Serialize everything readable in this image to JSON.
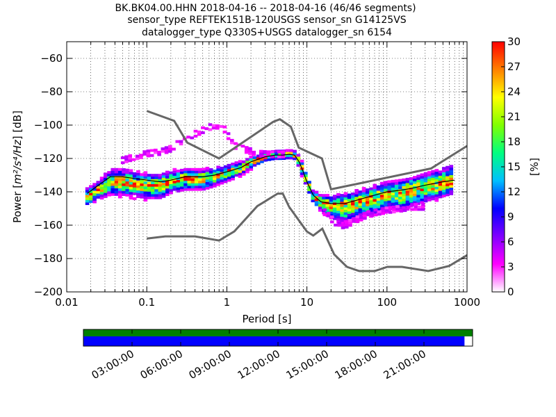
{
  "chart_data": {
    "type": "heatmap",
    "title_lines": [
      "BK.BK04.00.HHN   2018-04-16 -- 2018-04-16  (46/46 segments)",
      "sensor_type REFTEK151B-120USGS sensor_sn G14125VS",
      "datalogger_type Q330S+USGS datalogger_sn 6154"
    ],
    "xlabel": "Period [s]",
    "ylabel_prefix": "Power [",
    "ylabel_math": "m²/s⁴/Hz",
    "ylabel_suffix": "] [dB]",
    "x_scale": "log",
    "xlim": [
      0.01,
      1000
    ],
    "ylim": [
      -200,
      -50
    ],
    "x_ticks": [
      {
        "value": 0.01,
        "label": "0.01"
      },
      {
        "value": 0.1,
        "label": "0.1"
      },
      {
        "value": 1,
        "label": "1"
      },
      {
        "value": 10,
        "label": "10"
      },
      {
        "value": 100,
        "label": "100"
      },
      {
        "value": 1000,
        "label": "1000"
      }
    ],
    "y_ticks": [
      {
        "value": -60,
        "label": "−60"
      },
      {
        "value": -80,
        "label": "−80"
      },
      {
        "value": -100,
        "label": "−100"
      },
      {
        "value": -120,
        "label": "−120"
      },
      {
        "value": -140,
        "label": "−140"
      },
      {
        "value": -160,
        "label": "−160"
      },
      {
        "value": -180,
        "label": "−180"
      },
      {
        "value": -200,
        "label": "−200"
      }
    ],
    "grid": true,
    "colorbar": {
      "label": "[%]",
      "range": [
        0,
        30
      ],
      "ticks": [
        {
          "value": 0,
          "label": "0"
        },
        {
          "value": 3,
          "label": "3"
        },
        {
          "value": 6,
          "label": "6"
        },
        {
          "value": 9,
          "label": "9"
        },
        {
          "value": 12,
          "label": "12"
        },
        {
          "value": 15,
          "label": "15"
        },
        {
          "value": 18,
          "label": "18"
        },
        {
          "value": 21,
          "label": "21"
        },
        {
          "value": 24,
          "label": "24"
        },
        {
          "value": 27,
          "label": "27"
        },
        {
          "value": 30,
          "label": "30"
        }
      ],
      "colors": [
        "#ffffff",
        "#ff00ff",
        "#8000ff",
        "#0000ff",
        "#00c0ff",
        "#00ff80",
        "#80ff00",
        "#ffff00",
        "#ff8000",
        "#ff0000"
      ]
    },
    "noise_models": [
      {
        "name": "NHNM",
        "color": "#666666",
        "period": [
          0.1,
          0.22,
          0.32,
          0.8,
          3.8,
          4.6,
          6.3,
          7.9,
          15.4,
          20,
          354.8,
          1000
        ],
        "db": [
          -91.5,
          -97.4,
          -110.5,
          -120,
          -98,
          -96.5,
          -101,
          -113.5,
          -120,
          -138.5,
          -126,
          -112.5
        ]
      },
      {
        "name": "NLNM",
        "color": "#666666",
        "period": [
          0.1,
          0.17,
          0.4,
          0.8,
          1.24,
          2.4,
          4.3,
          5,
          6,
          10,
          12,
          15.6,
          21.9,
          31.6,
          45,
          70,
          101,
          154,
          328,
          600,
          1000
        ],
        "db": [
          -168,
          -166.7,
          -166.7,
          -169.2,
          -163.7,
          -148.6,
          -141.1,
          -141.1,
          -149,
          -163.8,
          -166.2,
          -162.1,
          -177.5,
          -185,
          -187.5,
          -187.5,
          -185,
          -185,
          -187.5,
          -184.4,
          -178
        ]
      }
    ],
    "pdf_series": {
      "period": [
        0.018,
        0.025,
        0.035,
        0.05,
        0.07,
        0.1,
        0.15,
        0.2,
        0.3,
        0.5,
        0.7,
        1,
        1.5,
        2,
        3,
        4,
        5,
        6,
        7,
        8,
        9,
        10,
        12,
        15,
        20,
        30,
        50,
        70,
        100,
        150,
        200,
        300,
        500,
        700
      ],
      "mode": [
        -143,
        -139,
        -134,
        -134,
        -135,
        -136,
        -136,
        -134,
        -132,
        -132,
        -131,
        -128,
        -126,
        -122,
        -119,
        -118,
        -118,
        -117.5,
        -118,
        -122,
        -128,
        -134,
        -143,
        -146,
        -148,
        -148,
        -145,
        -143,
        -141,
        -140,
        -139,
        -137,
        -135,
        -134
      ],
      "spread_low": [
        4,
        4,
        6,
        6,
        6,
        6,
        6,
        5,
        5,
        5,
        4,
        4,
        3,
        3,
        2,
        2,
        2,
        2,
        2,
        3,
        3,
        3,
        3,
        4,
        6,
        8,
        8,
        8,
        8,
        8,
        8,
        7,
        6,
        5
      ],
      "spread_high": [
        4,
        4,
        6,
        6,
        5,
        5,
        5,
        5,
        4,
        4,
        4,
        3,
        3,
        2,
        2,
        2,
        2,
        2,
        2,
        3,
        3,
        3,
        3,
        3,
        4,
        5,
        5,
        5,
        5,
        5,
        6,
        6,
        7,
        8
      ],
      "outlier_curve": {
        "period": [
          0.05,
          0.07,
          0.1,
          0.15,
          0.2,
          0.3,
          0.5,
          0.7,
          0.9,
          1.2,
          1.8,
          2.5,
          3.5,
          5
        ],
        "db": [
          -121,
          -119,
          -117,
          -116,
          -114,
          -108,
          -103,
          -100,
          -101,
          -112,
          -115,
          -117,
          -117.5,
          -117.5
        ]
      },
      "low_tail_curve": {
        "period": [
          15,
          20,
          25,
          30,
          40,
          60,
          100,
          150,
          200,
          300
        ],
        "db": [
          -150,
          -156,
          -160,
          -160,
          -157,
          -153,
          -151,
          -150,
          -149,
          -149
        ]
      },
      "mean": [
        -141,
        -136,
        -131,
        -131,
        -132,
        -133,
        -134,
        -133,
        -131,
        -131,
        -130,
        -128,
        -125.5,
        -122,
        -119,
        -118,
        -118,
        -117.5,
        -118,
        -122,
        -128,
        -134,
        -142,
        -146,
        -147,
        -147,
        -144,
        -142,
        -140,
        -139,
        -138,
        -136,
        -134,
        -133
      ]
    },
    "data_availability": {
      "start_label": "03:00:00",
      "time_labels": [
        "03:00:00",
        "06:00:00",
        "09:00:00",
        "12:00:00",
        "15:00:00",
        "18:00:00",
        "21:00:00"
      ],
      "time_hours": [
        3,
        6,
        9,
        12,
        15,
        18,
        21
      ],
      "span_hours": [
        0,
        24
      ],
      "coverage_top": {
        "color": "#008000",
        "from": 0,
        "to": 24
      },
      "coverage_bottom": {
        "color": "#0000ff",
        "from": 0,
        "to": 23.5
      }
    }
  }
}
